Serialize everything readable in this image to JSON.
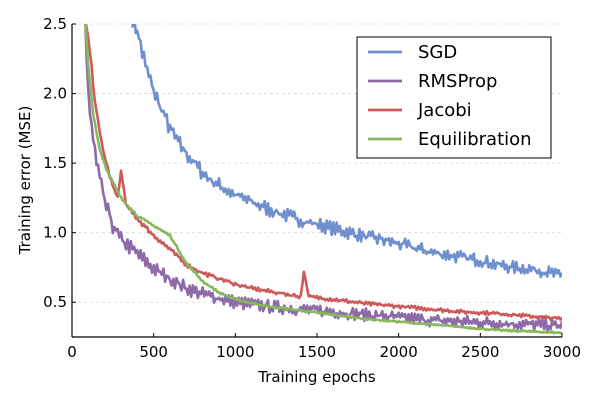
{
  "chart_data": {
    "type": "line",
    "title": "",
    "xlabel": "Training epochs",
    "ylabel": "Training error (MSE)",
    "xlim": [
      0,
      3000
    ],
    "ylim": [
      0.25,
      2.5
    ],
    "xticks": [
      0,
      500,
      1000,
      1500,
      2000,
      2500,
      3000
    ],
    "yticks": [
      0.5,
      1.0,
      1.5,
      2.0,
      2.5
    ],
    "xtick_labels": [
      "0",
      "500",
      "1000",
      "1500",
      "2000",
      "2500",
      "3000"
    ],
    "ytick_labels": [
      "0.5",
      "1.0",
      "1.5",
      "2.0",
      "2.5"
    ],
    "grid": "horizontal dashed",
    "legend_position": "top-right",
    "series": [
      {
        "name": "SGD",
        "legend_label": "SGD",
        "color": "#6f8fcf",
        "points": [
          [
            370,
            2.55
          ],
          [
            400,
            2.45
          ],
          [
            450,
            2.2
          ],
          [
            500,
            2.02
          ],
          [
            550,
            1.88
          ],
          [
            600,
            1.75
          ],
          [
            650,
            1.65
          ],
          [
            700,
            1.57
          ],
          [
            750,
            1.5
          ],
          [
            800,
            1.43
          ],
          [
            850,
            1.38
          ],
          [
            900,
            1.34
          ],
          [
            1000,
            1.27
          ],
          [
            1100,
            1.22
          ],
          [
            1200,
            1.17
          ],
          [
            1300,
            1.13
          ],
          [
            1400,
            1.09
          ],
          [
            1500,
            1.06
          ],
          [
            1600,
            1.03
          ],
          [
            1700,
            1.0
          ],
          [
            1800,
            0.97
          ],
          [
            1900,
            0.95
          ],
          [
            2000,
            0.92
          ],
          [
            2100,
            0.89
          ],
          [
            2200,
            0.86
          ],
          [
            2300,
            0.84
          ],
          [
            2400,
            0.82
          ],
          [
            2500,
            0.8
          ],
          [
            2600,
            0.77
          ],
          [
            2700,
            0.75
          ],
          [
            2800,
            0.74
          ],
          [
            2900,
            0.72
          ],
          [
            3000,
            0.69
          ]
        ],
        "noise": 0.035
      },
      {
        "name": "RMSProp",
        "legend_label": "RMSProp",
        "color": "#8e6aa8",
        "points": [
          [
            80,
            2.55
          ],
          [
            100,
            2.0
          ],
          [
            120,
            1.75
          ],
          [
            150,
            1.5
          ],
          [
            200,
            1.22
          ],
          [
            250,
            1.05
          ],
          [
            300,
            0.95
          ],
          [
            400,
            0.85
          ],
          [
            500,
            0.74
          ],
          [
            600,
            0.67
          ],
          [
            700,
            0.6
          ],
          [
            800,
            0.56
          ],
          [
            900,
            0.53
          ],
          [
            1000,
            0.5
          ],
          [
            1200,
            0.47
          ],
          [
            1400,
            0.45
          ],
          [
            1600,
            0.43
          ],
          [
            1800,
            0.41
          ],
          [
            2000,
            0.39
          ],
          [
            2200,
            0.37
          ],
          [
            2400,
            0.36
          ],
          [
            2600,
            0.35
          ],
          [
            2800,
            0.34
          ],
          [
            3000,
            0.33
          ]
        ],
        "noise": 0.04
      },
      {
        "name": "Jacobi",
        "legend_label": " Jacobi",
        "color": "#cc5a5a",
        "points": [
          [
            80,
            2.55
          ],
          [
            110,
            2.3
          ],
          [
            140,
            1.95
          ],
          [
            180,
            1.65
          ],
          [
            230,
            1.4
          ],
          [
            280,
            1.25
          ],
          [
            300,
            1.45
          ],
          [
            330,
            1.2
          ],
          [
            400,
            1.1
          ],
          [
            500,
            0.98
          ],
          [
            600,
            0.88
          ],
          [
            700,
            0.77
          ],
          [
            800,
            0.71
          ],
          [
            900,
            0.67
          ],
          [
            1000,
            0.63
          ],
          [
            1100,
            0.6
          ],
          [
            1200,
            0.58
          ],
          [
            1300,
            0.56
          ],
          [
            1400,
            0.54
          ],
          [
            1420,
            0.72
          ],
          [
            1450,
            0.54
          ],
          [
            1600,
            0.52
          ],
          [
            1800,
            0.49
          ],
          [
            2000,
            0.47
          ],
          [
            2200,
            0.45
          ],
          [
            2400,
            0.43
          ],
          [
            2600,
            0.42
          ],
          [
            2800,
            0.4
          ],
          [
            3000,
            0.38
          ]
        ],
        "noise": 0.012
      },
      {
        "name": "Equilibration",
        "legend_label": "Equilibration",
        "color": "#87b85e",
        "points": [
          [
            80,
            2.55
          ],
          [
            100,
            2.2
          ],
          [
            130,
            1.85
          ],
          [
            170,
            1.6
          ],
          [
            220,
            1.43
          ],
          [
            300,
            1.25
          ],
          [
            400,
            1.12
          ],
          [
            500,
            1.05
          ],
          [
            600,
            0.98
          ],
          [
            700,
            0.78
          ],
          [
            800,
            0.65
          ],
          [
            900,
            0.57
          ],
          [
            1000,
            0.52
          ],
          [
            1200,
            0.47
          ],
          [
            1400,
            0.44
          ],
          [
            1600,
            0.41
          ],
          [
            1800,
            0.38
          ],
          [
            2000,
            0.36
          ],
          [
            2200,
            0.34
          ],
          [
            2400,
            0.32
          ],
          [
            2600,
            0.3
          ],
          [
            2800,
            0.29
          ],
          [
            3000,
            0.28
          ]
        ],
        "noise": 0.006
      }
    ]
  }
}
